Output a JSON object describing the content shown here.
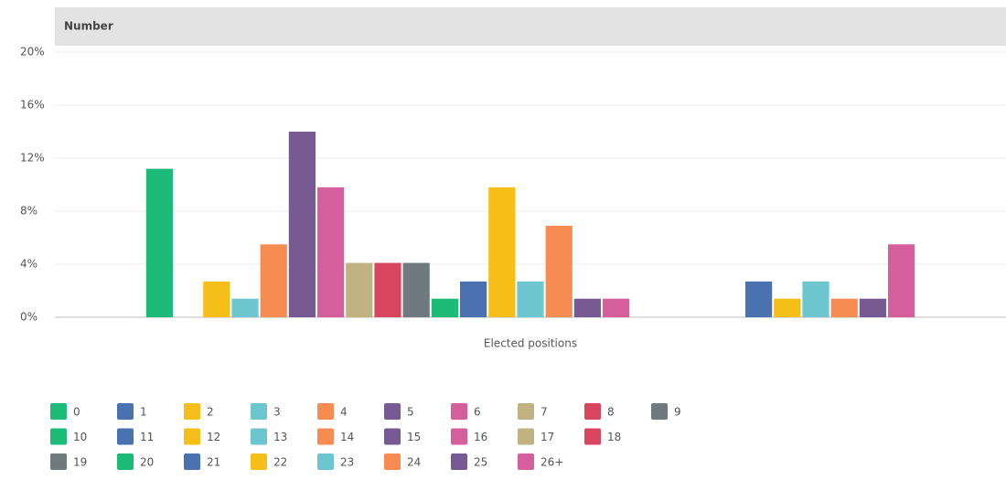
{
  "chart_data": {
    "type": "bar",
    "title": "Number",
    "categories": [
      "Elected positions"
    ],
    "ylim": [
      0,
      20
    ],
    "yticks": [
      {
        "value": 0,
        "label": "0%"
      },
      {
        "value": 4,
        "label": "4%"
      },
      {
        "value": 8,
        "label": "8%"
      },
      {
        "value": 12,
        "label": "12%"
      },
      {
        "value": 16,
        "label": "16%"
      },
      {
        "value": 20,
        "label": "20%"
      }
    ],
    "grid": true,
    "legend": "bottom",
    "series": [
      {
        "name": "0",
        "color": "#1dbb78",
        "values": [
          11.2
        ]
      },
      {
        "name": "1",
        "color": "#4a72b0",
        "values": [
          0
        ]
      },
      {
        "name": "2",
        "color": "#f6be18",
        "values": [
          2.7
        ]
      },
      {
        "name": "3",
        "color": "#6cc6cf",
        "values": [
          1.4
        ]
      },
      {
        "name": "4",
        "color": "#f78c52",
        "values": [
          5.5
        ]
      },
      {
        "name": "5",
        "color": "#785a93",
        "values": [
          14
        ]
      },
      {
        "name": "6",
        "color": "#d55f9c",
        "values": [
          9.8
        ]
      },
      {
        "name": "7",
        "color": "#c1b281",
        "values": [
          4.1
        ]
      },
      {
        "name": "8",
        "color": "#d9455f",
        "values": [
          4.1
        ]
      },
      {
        "name": "9",
        "color": "#6e7a80",
        "values": [
          4.1
        ]
      },
      {
        "name": "10",
        "color": "#1dbb78",
        "values": [
          1.4
        ]
      },
      {
        "name": "11",
        "color": "#4a72b0",
        "values": [
          2.7
        ]
      },
      {
        "name": "12",
        "color": "#f6be18",
        "values": [
          9.8
        ]
      },
      {
        "name": "13",
        "color": "#6cc6cf",
        "values": [
          2.7
        ]
      },
      {
        "name": "14",
        "color": "#f78c52",
        "values": [
          6.9
        ]
      },
      {
        "name": "15",
        "color": "#785a93",
        "values": [
          1.4
        ]
      },
      {
        "name": "16",
        "color": "#d55f9c",
        "values": [
          1.4
        ]
      },
      {
        "name": "17",
        "color": "#c1b281",
        "values": [
          0
        ]
      },
      {
        "name": "18",
        "color": "#d9455f",
        "values": [
          0
        ]
      },
      {
        "name": "19",
        "color": "#6e7a80",
        "values": [
          0
        ]
      },
      {
        "name": "20",
        "color": "#1dbb78",
        "values": [
          0
        ]
      },
      {
        "name": "21",
        "color": "#4a72b0",
        "values": [
          2.7
        ]
      },
      {
        "name": "22",
        "color": "#f6be18",
        "values": [
          1.4
        ]
      },
      {
        "name": "23",
        "color": "#6cc6cf",
        "values": [
          2.7
        ]
      },
      {
        "name": "24",
        "color": "#f78c52",
        "values": [
          1.4
        ]
      },
      {
        "name": "25",
        "color": "#785a93",
        "values": [
          1.4
        ]
      },
      {
        "name": "26+",
        "color": "#d55f9c",
        "values": [
          5.5
        ]
      }
    ]
  }
}
